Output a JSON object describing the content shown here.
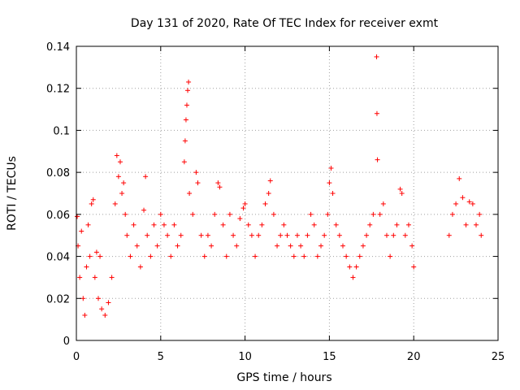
{
  "chart_data": {
    "type": "scatter",
    "title": "Day 131 of 2020, Rate Of TEC Index for receiver exmt",
    "xlabel": "GPS time / hours",
    "ylabel": "ROTI / TECUs",
    "xlim": [
      0,
      25
    ],
    "ylim": [
      0,
      0.14
    ],
    "x_ticks": [
      "0",
      "5",
      "10",
      "15",
      "20",
      "25"
    ],
    "y_ticks": [
      "0",
      "0.02",
      "0.04",
      "0.06",
      "0.08",
      "0.1",
      "0.12",
      "0.14"
    ],
    "grid": true,
    "marker": "+",
    "color": "#ff0000",
    "series": [
      {
        "points": [
          [
            0.05,
            0.059
          ],
          [
            0.1,
            0.045
          ],
          [
            0.2,
            0.03
          ],
          [
            0.3,
            0.052
          ],
          [
            0.4,
            0.02
          ],
          [
            0.5,
            0.012
          ],
          [
            0.6,
            0.035
          ],
          [
            0.7,
            0.055
          ],
          [
            0.8,
            0.04
          ],
          [
            0.9,
            0.065
          ],
          [
            1.0,
            0.067
          ],
          [
            1.1,
            0.03
          ],
          [
            1.2,
            0.042
          ],
          [
            1.3,
            0.02
          ],
          [
            1.4,
            0.04
          ],
          [
            1.5,
            0.015
          ],
          [
            1.7,
            0.012
          ],
          [
            1.9,
            0.018
          ],
          [
            2.1,
            0.03
          ],
          [
            2.3,
            0.065
          ],
          [
            2.4,
            0.088
          ],
          [
            2.5,
            0.078
          ],
          [
            2.6,
            0.085
          ],
          [
            2.7,
            0.07
          ],
          [
            2.8,
            0.075
          ],
          [
            2.9,
            0.06
          ],
          [
            3.0,
            0.05
          ],
          [
            3.2,
            0.04
          ],
          [
            3.4,
            0.055
          ],
          [
            3.6,
            0.045
          ],
          [
            3.8,
            0.035
          ],
          [
            4.0,
            0.062
          ],
          [
            4.1,
            0.078
          ],
          [
            4.2,
            0.05
          ],
          [
            4.4,
            0.04
          ],
          [
            4.6,
            0.055
          ],
          [
            4.8,
            0.045
          ],
          [
            5.0,
            0.06
          ],
          [
            5.2,
            0.055
          ],
          [
            5.4,
            0.05
          ],
          [
            5.6,
            0.04
          ],
          [
            5.8,
            0.055
          ],
          [
            6.0,
            0.045
          ],
          [
            6.2,
            0.05
          ],
          [
            6.4,
            0.085
          ],
          [
            6.45,
            0.095
          ],
          [
            6.5,
            0.105
          ],
          [
            6.55,
            0.112
          ],
          [
            6.6,
            0.119
          ],
          [
            6.65,
            0.123
          ],
          [
            6.7,
            0.07
          ],
          [
            6.9,
            0.06
          ],
          [
            7.1,
            0.08
          ],
          [
            7.2,
            0.075
          ],
          [
            7.4,
            0.05
          ],
          [
            7.6,
            0.04
          ],
          [
            7.8,
            0.05
          ],
          [
            8.0,
            0.045
          ],
          [
            8.2,
            0.06
          ],
          [
            8.4,
            0.075
          ],
          [
            8.5,
            0.073
          ],
          [
            8.7,
            0.055
          ],
          [
            8.9,
            0.04
          ],
          [
            9.1,
            0.06
          ],
          [
            9.3,
            0.05
          ],
          [
            9.5,
            0.045
          ],
          [
            9.7,
            0.058
          ],
          [
            9.9,
            0.063
          ],
          [
            10.0,
            0.065
          ],
          [
            10.2,
            0.055
          ],
          [
            10.4,
            0.05
          ],
          [
            10.6,
            0.04
          ],
          [
            10.8,
            0.05
          ],
          [
            11.0,
            0.055
          ],
          [
            11.2,
            0.065
          ],
          [
            11.4,
            0.07
          ],
          [
            11.5,
            0.076
          ],
          [
            11.7,
            0.06
          ],
          [
            11.9,
            0.045
          ],
          [
            12.1,
            0.05
          ],
          [
            12.3,
            0.055
          ],
          [
            12.5,
            0.05
          ],
          [
            12.7,
            0.045
          ],
          [
            12.9,
            0.04
          ],
          [
            13.1,
            0.05
          ],
          [
            13.3,
            0.045
          ],
          [
            13.5,
            0.04
          ],
          [
            13.7,
            0.05
          ],
          [
            13.9,
            0.06
          ],
          [
            14.1,
            0.055
          ],
          [
            14.3,
            0.04
          ],
          [
            14.5,
            0.045
          ],
          [
            14.7,
            0.05
          ],
          [
            14.9,
            0.06
          ],
          [
            15.0,
            0.075
          ],
          [
            15.1,
            0.082
          ],
          [
            15.2,
            0.07
          ],
          [
            15.4,
            0.055
          ],
          [
            15.6,
            0.05
          ],
          [
            15.8,
            0.045
          ],
          [
            16.0,
            0.04
          ],
          [
            16.2,
            0.035
          ],
          [
            16.4,
            0.03
          ],
          [
            16.6,
            0.035
          ],
          [
            16.8,
            0.04
          ],
          [
            17.0,
            0.045
          ],
          [
            17.2,
            0.05
          ],
          [
            17.4,
            0.055
          ],
          [
            17.6,
            0.06
          ],
          [
            17.8,
            0.135
          ],
          [
            17.82,
            0.108
          ],
          [
            17.85,
            0.086
          ],
          [
            18.0,
            0.06
          ],
          [
            18.2,
            0.065
          ],
          [
            18.4,
            0.05
          ],
          [
            18.6,
            0.04
          ],
          [
            18.8,
            0.05
          ],
          [
            19.0,
            0.055
          ],
          [
            19.2,
            0.072
          ],
          [
            19.3,
            0.07
          ],
          [
            19.5,
            0.05
          ],
          [
            19.7,
            0.055
          ],
          [
            19.9,
            0.045
          ],
          [
            20.0,
            0.035
          ],
          [
            22.1,
            0.05
          ],
          [
            22.3,
            0.06
          ],
          [
            22.5,
            0.065
          ],
          [
            22.7,
            0.077
          ],
          [
            22.9,
            0.068
          ],
          [
            23.1,
            0.055
          ],
          [
            23.3,
            0.066
          ],
          [
            23.5,
            0.065
          ],
          [
            23.7,
            0.055
          ],
          [
            23.9,
            0.06
          ],
          [
            24.0,
            0.05
          ]
        ]
      }
    ]
  }
}
